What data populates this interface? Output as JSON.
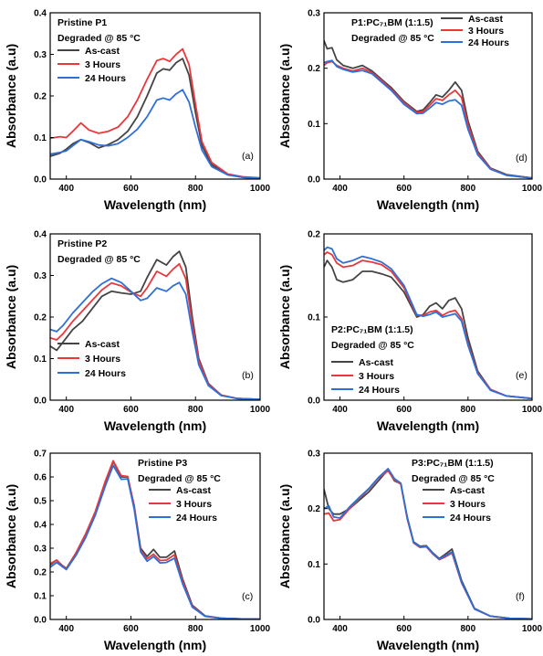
{
  "colors": {
    "As-cast": "#444444",
    "3 Hours": "#e8383c",
    "24 Hours": "#2f6fd8"
  },
  "chart_data": [
    {
      "type": "line",
      "panel": "(a)",
      "annotations": [
        "Pristine P1",
        "Degraded @ 85 °C"
      ],
      "xlabel": "Wavelength (nm)",
      "ylabel": "Absorbance (a.u)",
      "xlim": [
        350,
        1000
      ],
      "ylim": [
        0,
        0.4
      ],
      "xticks": [
        400,
        600,
        800,
        1000
      ],
      "yticks": [
        0.0,
        0.1,
        0.2,
        0.3,
        0.4
      ],
      "legend_position": "top-left",
      "x": [
        350,
        380,
        400,
        420,
        445,
        470,
        500,
        530,
        560,
        590,
        620,
        650,
        680,
        700,
        720,
        740,
        760,
        780,
        800,
        820,
        850,
        900,
        950,
        1000
      ],
      "series": [
        {
          "name": "As-cast",
          "values": [
            0.055,
            0.062,
            0.072,
            0.085,
            0.095,
            0.088,
            0.075,
            0.083,
            0.095,
            0.115,
            0.15,
            0.2,
            0.255,
            0.265,
            0.262,
            0.28,
            0.29,
            0.25,
            0.16,
            0.08,
            0.035,
            0.01,
            0.004,
            0.002
          ]
        },
        {
          "name": "3 Hours",
          "values": [
            0.098,
            0.102,
            0.1,
            0.115,
            0.135,
            0.118,
            0.11,
            0.115,
            0.125,
            0.15,
            0.19,
            0.24,
            0.285,
            0.29,
            0.283,
            0.3,
            0.313,
            0.275,
            0.18,
            0.09,
            0.04,
            0.012,
            0.005,
            0.003
          ]
        },
        {
          "name": "24 Hours",
          "values": [
            0.06,
            0.064,
            0.068,
            0.08,
            0.095,
            0.09,
            0.082,
            0.08,
            0.085,
            0.1,
            0.12,
            0.15,
            0.19,
            0.195,
            0.19,
            0.205,
            0.215,
            0.185,
            0.125,
            0.07,
            0.03,
            0.01,
            0.004,
            0.002
          ]
        }
      ]
    },
    {
      "type": "line",
      "panel": "(d)",
      "annotations": [
        "P1:PC₇₁BM (1:1.5)",
        "Degraded @ 85 °C"
      ],
      "xlabel": "Wavelength (nm)",
      "ylabel": "Absorbance (a.u)",
      "xlim": [
        350,
        1000
      ],
      "ylim": [
        0,
        0.3
      ],
      "xticks": [
        400,
        600,
        800,
        1000
      ],
      "yticks": [
        0.0,
        0.1,
        0.2,
        0.3
      ],
      "legend_position": "top-right",
      "x": [
        350,
        360,
        375,
        390,
        410,
        440,
        470,
        500,
        530,
        560,
        600,
        640,
        660,
        680,
        700,
        720,
        740,
        760,
        780,
        800,
        830,
        870,
        920,
        1000
      ],
      "series": [
        {
          "name": "As-cast",
          "values": [
            0.25,
            0.235,
            0.237,
            0.215,
            0.205,
            0.2,
            0.205,
            0.195,
            0.18,
            0.165,
            0.14,
            0.122,
            0.125,
            0.138,
            0.152,
            0.148,
            0.16,
            0.175,
            0.16,
            0.105,
            0.05,
            0.02,
            0.008,
            0.002
          ]
        },
        {
          "name": "3 Hours",
          "values": [
            0.205,
            0.21,
            0.212,
            0.205,
            0.2,
            0.195,
            0.2,
            0.192,
            0.178,
            0.162,
            0.138,
            0.12,
            0.122,
            0.133,
            0.145,
            0.142,
            0.152,
            0.16,
            0.147,
            0.098,
            0.047,
            0.019,
            0.007,
            0.002
          ]
        },
        {
          "name": "24 Hours",
          "values": [
            0.21,
            0.212,
            0.214,
            0.203,
            0.198,
            0.193,
            0.196,
            0.19,
            0.175,
            0.16,
            0.135,
            0.118,
            0.119,
            0.128,
            0.138,
            0.135,
            0.141,
            0.143,
            0.133,
            0.09,
            0.044,
            0.018,
            0.007,
            0.002
          ]
        }
      ]
    },
    {
      "type": "line",
      "panel": "(b)",
      "annotations": [
        "Pristine P2",
        "Degraded @ 85 °C"
      ],
      "xlabel": "Wavelength (nm)",
      "ylabel": "Absorbance (a.u)",
      "xlim": [
        350,
        1000
      ],
      "ylim": [
        0,
        0.4
      ],
      "xticks": [
        400,
        600,
        800,
        1000
      ],
      "yticks": [
        0.0,
        0.1,
        0.2,
        0.3,
        0.4
      ],
      "legend_position": "bottom-left",
      "x": [
        350,
        370,
        390,
        420,
        450,
        480,
        510,
        540,
        570,
        600,
        630,
        650,
        680,
        710,
        730,
        750,
        770,
        790,
        810,
        840,
        880,
        930,
        1000
      ],
      "series": [
        {
          "name": "As-cast",
          "values": [
            0.13,
            0.12,
            0.14,
            0.17,
            0.19,
            0.22,
            0.25,
            0.262,
            0.258,
            0.255,
            0.262,
            0.295,
            0.338,
            0.325,
            0.345,
            0.358,
            0.32,
            0.2,
            0.1,
            0.04,
            0.012,
            0.004,
            0.002
          ]
        },
        {
          "name": "3 Hours",
          "values": [
            0.15,
            0.145,
            0.16,
            0.19,
            0.215,
            0.24,
            0.265,
            0.282,
            0.275,
            0.26,
            0.25,
            0.27,
            0.31,
            0.298,
            0.315,
            0.328,
            0.292,
            0.185,
            0.095,
            0.038,
            0.012,
            0.004,
            0.002
          ]
        },
        {
          "name": "24 Hours",
          "values": [
            0.17,
            0.165,
            0.18,
            0.21,
            0.235,
            0.26,
            0.28,
            0.293,
            0.283,
            0.262,
            0.24,
            0.245,
            0.27,
            0.262,
            0.275,
            0.283,
            0.255,
            0.165,
            0.085,
            0.035,
            0.011,
            0.004,
            0.002
          ]
        }
      ]
    },
    {
      "type": "line",
      "panel": "(e)",
      "annotations": [
        "P2:PC₇₁BM (1:1.5)",
        "Degraded @ 85 °C"
      ],
      "xlabel": "Wavelength (nm)",
      "ylabel": "Absorbance (a.u)",
      "xlim": [
        350,
        1000
      ],
      "ylim": [
        0,
        0.2
      ],
      "xticks": [
        400,
        600,
        800,
        1000
      ],
      "yticks": [
        0.0,
        0.1,
        0.2
      ],
      "legend_position": "bottom-left",
      "x": [
        350,
        360,
        375,
        390,
        410,
        440,
        470,
        500,
        530,
        560,
        600,
        640,
        660,
        680,
        700,
        720,
        740,
        760,
        780,
        800,
        830,
        870,
        920,
        1000
      ],
      "series": [
        {
          "name": "As-cast",
          "values": [
            0.16,
            0.168,
            0.16,
            0.145,
            0.142,
            0.145,
            0.155,
            0.155,
            0.152,
            0.148,
            0.13,
            0.1,
            0.103,
            0.113,
            0.117,
            0.11,
            0.12,
            0.123,
            0.11,
            0.075,
            0.035,
            0.013,
            0.005,
            0.002
          ]
        },
        {
          "name": "3 Hours",
          "values": [
            0.175,
            0.178,
            0.175,
            0.165,
            0.16,
            0.162,
            0.168,
            0.166,
            0.163,
            0.155,
            0.135,
            0.102,
            0.102,
            0.106,
            0.108,
            0.102,
            0.106,
            0.108,
            0.098,
            0.068,
            0.033,
            0.013,
            0.005,
            0.002
          ]
        },
        {
          "name": "24 Hours",
          "values": [
            0.18,
            0.184,
            0.182,
            0.17,
            0.165,
            0.168,
            0.173,
            0.17,
            0.166,
            0.158,
            0.138,
            0.103,
            0.101,
            0.103,
            0.106,
            0.1,
            0.102,
            0.104,
            0.095,
            0.066,
            0.032,
            0.012,
            0.005,
            0.002
          ]
        }
      ]
    },
    {
      "type": "line",
      "panel": "(c)",
      "annotations": [
        "Pristine P3",
        "Degraded @ 85 °C"
      ],
      "xlabel": "Wavelength (nm)",
      "ylabel": "Absorbance (a.u)",
      "xlim": [
        350,
        1000
      ],
      "ylim": [
        0,
        0.7
      ],
      "xticks": [
        400,
        600,
        800,
        1000
      ],
      "yticks": [
        0.0,
        0.1,
        0.2,
        0.3,
        0.4,
        0.5,
        0.6,
        0.7
      ],
      "legend_position": "top-right",
      "x": [
        350,
        370,
        385,
        400,
        430,
        460,
        490,
        520,
        545,
        570,
        590,
        610,
        630,
        650,
        670,
        690,
        710,
        735,
        760,
        790,
        830,
        880,
        950,
        1000
      ],
      "series": [
        {
          "name": "As-cast",
          "values": [
            0.23,
            0.25,
            0.23,
            0.215,
            0.28,
            0.36,
            0.45,
            0.57,
            0.665,
            0.6,
            0.6,
            0.48,
            0.3,
            0.265,
            0.295,
            0.262,
            0.262,
            0.288,
            0.17,
            0.06,
            0.015,
            0.005,
            0.002,
            0.001
          ]
        },
        {
          "name": "3 Hours",
          "values": [
            0.235,
            0.25,
            0.228,
            0.213,
            0.28,
            0.36,
            0.455,
            0.58,
            0.668,
            0.605,
            0.602,
            0.475,
            0.292,
            0.255,
            0.275,
            0.248,
            0.25,
            0.272,
            0.16,
            0.056,
            0.014,
            0.005,
            0.002,
            0.001
          ]
        },
        {
          "name": "24 Hours",
          "values": [
            0.22,
            0.24,
            0.225,
            0.21,
            0.27,
            0.345,
            0.44,
            0.56,
            0.648,
            0.59,
            0.592,
            0.465,
            0.285,
            0.245,
            0.265,
            0.238,
            0.24,
            0.258,
            0.15,
            0.052,
            0.013,
            0.005,
            0.002,
            0.001
          ]
        }
      ]
    },
    {
      "type": "line",
      "panel": "(f)",
      "annotations": [
        "P3:PC₇₁BM (1:1.5)",
        "Degraded @ 85 °C"
      ],
      "xlabel": "Wavelength (nm)",
      "ylabel": "Absorbance (a.u)",
      "xlim": [
        350,
        1000
      ],
      "ylim": [
        0,
        0.3
      ],
      "xticks": [
        400,
        600,
        800,
        1000
      ],
      "yticks": [
        0.0,
        0.1,
        0.2,
        0.3
      ],
      "legend_position": "right",
      "x": [
        350,
        365,
        380,
        400,
        430,
        460,
        490,
        520,
        550,
        570,
        590,
        610,
        630,
        650,
        670,
        690,
        710,
        730,
        750,
        780,
        820,
        870,
        930,
        1000
      ],
      "series": [
        {
          "name": "As-cast",
          "values": [
            0.235,
            0.2,
            0.19,
            0.19,
            0.2,
            0.215,
            0.23,
            0.25,
            0.27,
            0.25,
            0.245,
            0.185,
            0.14,
            0.132,
            0.133,
            0.12,
            0.11,
            0.118,
            0.127,
            0.07,
            0.02,
            0.006,
            0.002,
            0.001
          ]
        },
        {
          "name": "3 Hours",
          "values": [
            0.19,
            0.192,
            0.178,
            0.18,
            0.2,
            0.218,
            0.235,
            0.255,
            0.268,
            0.252,
            0.244,
            0.182,
            0.138,
            0.13,
            0.131,
            0.118,
            0.108,
            0.113,
            0.12,
            0.066,
            0.019,
            0.006,
            0.002,
            0.001
          ]
        },
        {
          "name": "24 Hours",
          "values": [
            0.2,
            0.205,
            0.185,
            0.183,
            0.203,
            0.22,
            0.236,
            0.256,
            0.272,
            0.254,
            0.246,
            0.184,
            0.139,
            0.131,
            0.132,
            0.119,
            0.109,
            0.115,
            0.122,
            0.067,
            0.019,
            0.006,
            0.002,
            0.001
          ]
        }
      ]
    }
  ]
}
